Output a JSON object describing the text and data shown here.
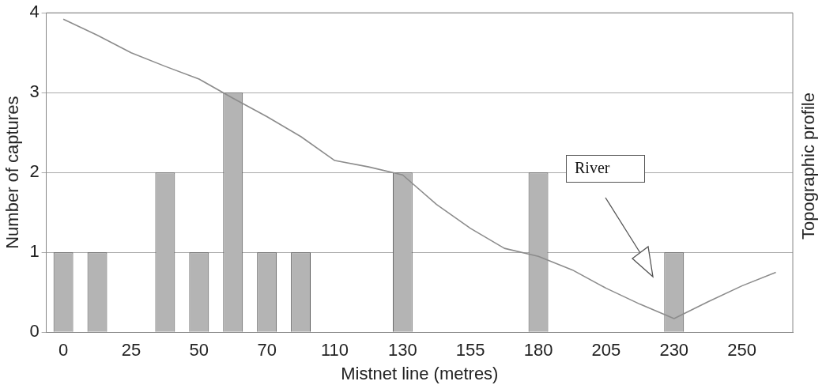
{
  "chart_data": {
    "type": "bar",
    "xlabel": "Mistnet line (metres)",
    "ylabel": "Number of captures",
    "y2label": "Topographic profile",
    "categories": [
      "0",
      null,
      "25",
      null,
      "50",
      null,
      "70",
      null,
      "110",
      null,
      "130",
      null,
      "155",
      null,
      "180",
      null,
      "205",
      null,
      "230",
      null,
      "250",
      null
    ],
    "series": [
      {
        "color": "#b4b4b4",
        "values": [
          1,
          1,
          0,
          2,
          1,
          3,
          1,
          1,
          0,
          0,
          2,
          0,
          0,
          0,
          2,
          0,
          0,
          0,
          1,
          0,
          0,
          0
        ]
      },
      {
        "type": "line",
        "color": "#8c8c8c",
        "values": [
          3.92,
          3.72,
          3.5,
          3.33,
          3.17,
          2.93,
          2.7,
          2.45,
          2.15,
          2.07,
          1.97,
          1.6,
          1.3,
          1.05,
          0.95,
          0.78,
          0.55,
          0.35,
          0.17,
          0.38,
          0.58,
          0.75
        ]
      }
    ],
    "ylim": [
      0,
      4
    ],
    "yticks": [
      0,
      1,
      2,
      3,
      4
    ],
    "grid": "y",
    "marker": "none",
    "annotations": [
      "River"
    ]
  }
}
